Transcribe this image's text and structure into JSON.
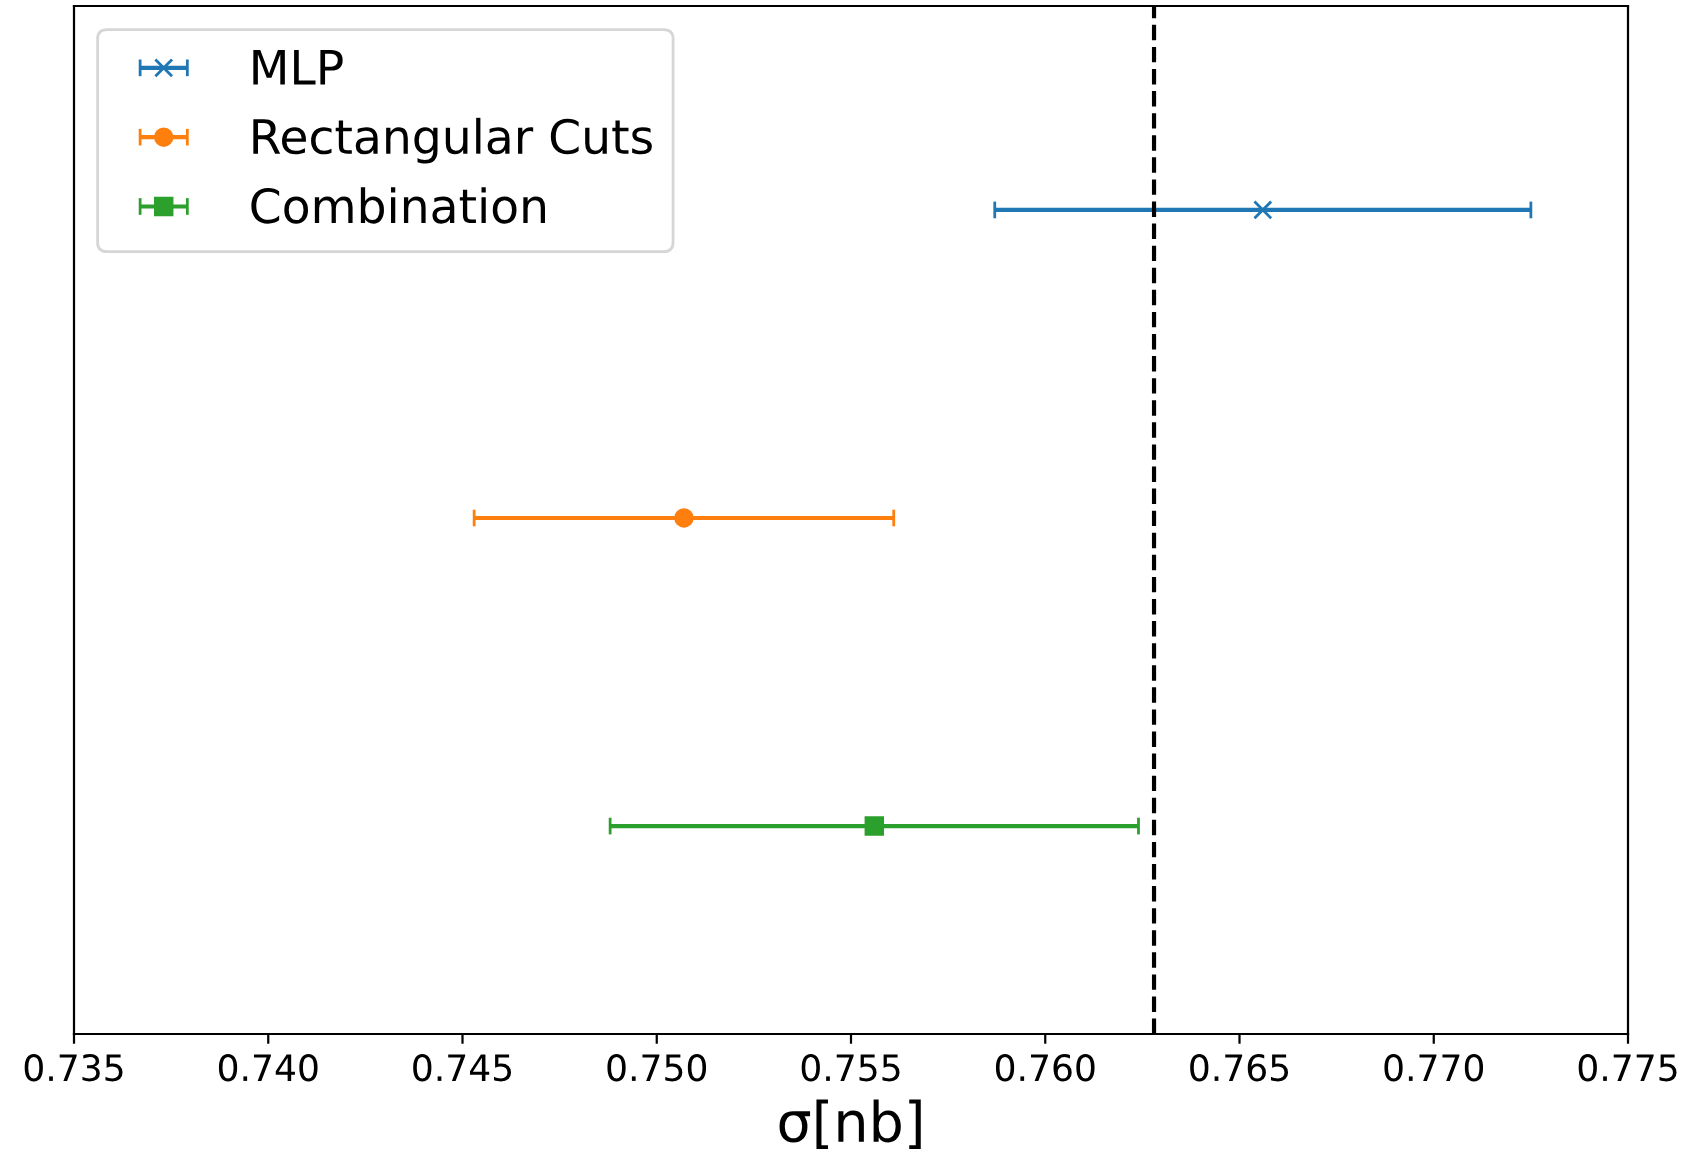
{
  "chart_data": {
    "type": "scatter",
    "orientation": "horizontal",
    "xlabel": "σ[nb]",
    "categories": [
      null,
      null,
      null
    ],
    "series": [
      {
        "name": "MLP",
        "color": "#1f77b4",
        "marker": "cross",
        "values": [
          0.7656,
          null,
          null
        ],
        "errors": [
          0.0069,
          null,
          null
        ]
      },
      {
        "name": "Rectangular Cuts",
        "color": "#ff7f0e",
        "marker": "circle",
        "values": [
          null,
          0.7507,
          null
        ],
        "errors": [
          null,
          0.0054,
          null
        ]
      },
      {
        "name": "Combination",
        "color": "#2ca02c",
        "marker": "square",
        "values": [
          null,
          null,
          0.7556
        ],
        "errors": [
          null,
          null,
          0.0068
        ]
      }
    ],
    "xlim": [
      0.735,
      0.775
    ],
    "xticks": [
      0.735,
      {
        "value": 0.74,
        "label": "0.740"
      },
      0.745,
      {
        "value": 0.75,
        "label": "0.750"
      },
      0.755,
      {
        "value": 0.76,
        "label": "0.760"
      },
      0.765,
      {
        "value": 0.77,
        "label": "0.770"
      },
      0.775
    ],
    "ref_lines": [
      {
        "axis": "x",
        "value": 0.7628,
        "color": "#000000",
        "line_style": "dashed"
      }
    ],
    "legend": "top left",
    "tick_labels": "x",
    "grid": false
  }
}
